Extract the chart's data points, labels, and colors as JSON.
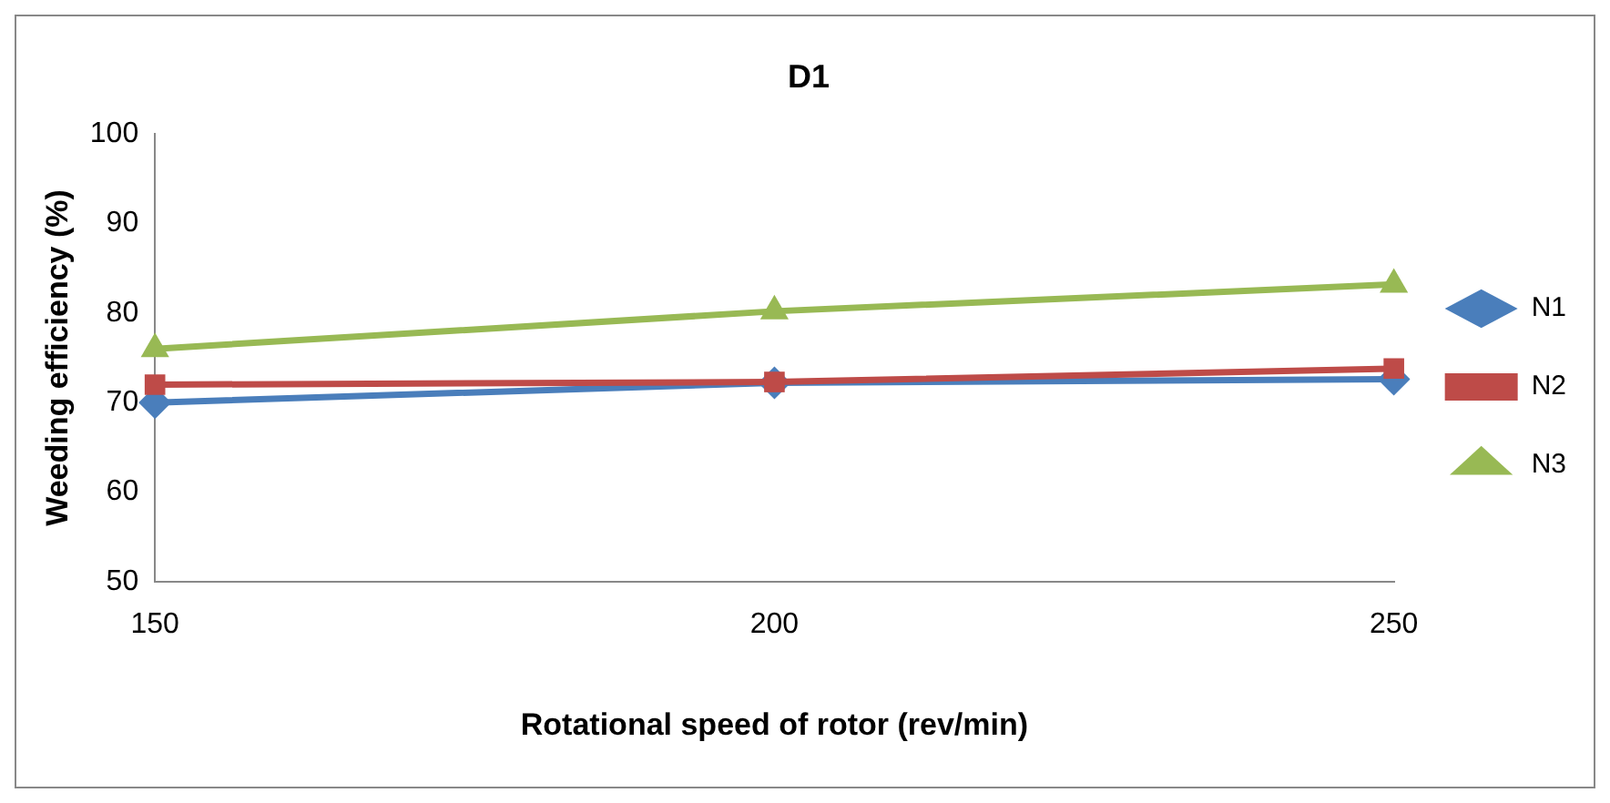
{
  "chart_data": {
    "type": "line",
    "title": "D1",
    "xlabel": "Rotational speed of rotor (rev/min)",
    "ylabel": "Weeding efficiency (%)",
    "categories": [
      "150",
      "200",
      "250"
    ],
    "series": [
      {
        "name": "N1",
        "color": "#4a7ebb",
        "values": [
          70,
          72.2,
          72.6
        ],
        "marker": "diamond"
      },
      {
        "name": "N2",
        "color": "#be4b48",
        "values": [
          72,
          72.3,
          73.8
        ],
        "marker": "square"
      },
      {
        "name": "N3",
        "color": "#98b954",
        "values": [
          76,
          80.2,
          83.2
        ],
        "marker": "triangle"
      }
    ],
    "ylim": [
      50,
      100
    ],
    "yticks": [
      50,
      60,
      70,
      80,
      90,
      100
    ],
    "grid": false,
    "legend": "right",
    "line_style": "solid"
  }
}
